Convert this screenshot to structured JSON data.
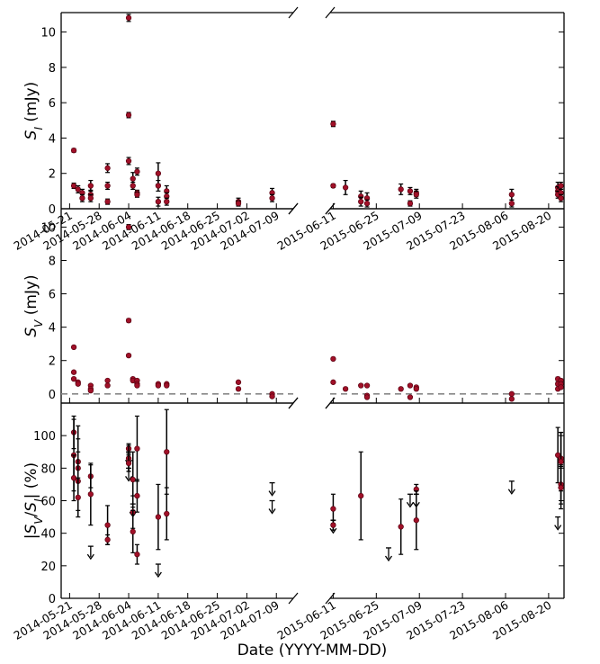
{
  "figure": {
    "xlabel": "Date (YYYY-MM-DD)",
    "marker_color": "#a01028",
    "marker_edge_color": "#5a0010",
    "errorbar_color": "#000000",
    "zero_line_color": "#888888"
  },
  "chart_data": [
    {
      "id": "SI",
      "type": "scatter",
      "ylabel_main": "S",
      "ylabel_sub": "I",
      "ylabel_unit": " (mJy)",
      "ylim": [
        0,
        11.1
      ],
      "yticks": [
        0,
        2,
        4,
        6,
        8,
        10
      ],
      "left_xlim": [
        "2014-05-19",
        "2014-07-13"
      ],
      "left_xticks": [
        "2014-05-21",
        "2014-05-28",
        "2014-06-04",
        "2014-06-11",
        "2014-06-18",
        "2014-06-25",
        "2014-07-02",
        "2014-07-09"
      ],
      "right_xlim": [
        "2015-06-10",
        "2015-08-25"
      ],
      "right_xticks": [
        "2015-06-11",
        "2015-06-25",
        "2015-07-09",
        "2015-07-23",
        "2015-08-06",
        "2015-08-20"
      ],
      "points": [
        [
          "2014-05-22",
          3.3,
          0.1
        ],
        [
          "2014-05-22",
          1.3,
          0.15
        ],
        [
          "2014-05-23",
          1.1,
          0.2
        ],
        [
          "2014-05-24",
          0.9,
          0.2
        ],
        [
          "2014-05-24",
          0.6,
          0.2
        ],
        [
          "2014-05-26",
          1.3,
          0.3
        ],
        [
          "2014-05-26",
          0.8,
          0.25
        ],
        [
          "2014-05-26",
          0.6,
          0.2
        ],
        [
          "2014-05-30",
          2.3,
          0.25
        ],
        [
          "2014-05-30",
          1.3,
          0.2
        ],
        [
          "2014-05-30",
          0.4,
          0.15
        ],
        [
          "2014-06-04",
          10.8,
          0.2
        ],
        [
          "2014-06-04",
          5.3,
          0.15
        ],
        [
          "2014-06-04",
          2.7,
          0.2
        ],
        [
          "2014-06-05",
          1.7,
          0.35
        ],
        [
          "2014-06-05",
          1.3,
          0.2
        ],
        [
          "2014-06-06",
          2.1,
          0.2
        ],
        [
          "2014-06-06",
          0.9,
          0.15
        ],
        [
          "2014-06-06",
          0.8,
          0.15
        ],
        [
          "2014-06-11",
          2.0,
          0.6
        ],
        [
          "2014-06-11",
          1.3,
          0.3
        ],
        [
          "2014-06-11",
          0.4,
          0.25
        ],
        [
          "2014-06-13",
          1.0,
          0.3
        ],
        [
          "2014-06-13",
          0.7,
          0.2
        ],
        [
          "2014-06-13",
          0.4,
          0.2
        ],
        [
          "2014-06-30",
          0.4,
          0.2
        ],
        [
          "2014-06-30",
          0.3,
          0.15
        ],
        [
          "2014-07-08",
          0.9,
          0.25
        ],
        [
          "2014-07-08",
          0.6,
          0.2
        ],
        [
          "2015-06-11",
          4.8,
          0.15
        ],
        [
          "2015-06-11",
          1.3,
          0.1
        ],
        [
          "2015-06-15",
          1.2,
          0.4
        ],
        [
          "2015-06-20",
          0.7,
          0.3
        ],
        [
          "2015-06-20",
          0.4,
          0.25
        ],
        [
          "2015-06-22",
          0.6,
          0.3
        ],
        [
          "2015-06-22",
          0.3,
          0.2
        ],
        [
          "2015-07-03",
          1.1,
          0.3
        ],
        [
          "2015-07-06",
          1.0,
          0.2
        ],
        [
          "2015-07-06",
          0.3,
          0.15
        ],
        [
          "2015-07-08",
          0.9,
          0.2
        ],
        [
          "2015-07-08",
          0.8,
          0.2
        ],
        [
          "2015-08-08",
          0.8,
          0.3
        ],
        [
          "2015-08-08",
          0.3,
          0.2
        ],
        [
          "2015-08-23",
          1.2,
          0.3
        ],
        [
          "2015-08-23",
          1.0,
          0.25
        ],
        [
          "2015-08-23",
          0.8,
          0.2
        ],
        [
          "2015-08-24",
          1.3,
          0.2
        ],
        [
          "2015-08-24",
          0.9,
          0.2
        ],
        [
          "2015-08-24",
          0.6,
          0.2
        ]
      ]
    },
    {
      "id": "SV",
      "type": "scatter",
      "ylabel_main": "S",
      "ylabel_sub": "V",
      "ylabel_unit": " (mJy)",
      "ylim": [
        -0.55,
        11.1
      ],
      "yticks": [
        0,
        2,
        4,
        6,
        8,
        10
      ],
      "zero_line": true,
      "left_xlim": [
        "2014-05-19",
        "2014-07-13"
      ],
      "right_xlim": [
        "2015-06-10",
        "2015-08-25"
      ],
      "points": [
        [
          "2014-05-22",
          2.8,
          0.05
        ],
        [
          "2014-05-22",
          1.3,
          0.05
        ],
        [
          "2014-05-22",
          0.9,
          0.05
        ],
        [
          "2014-05-23",
          0.7,
          0.05
        ],
        [
          "2014-05-23",
          0.6,
          0.05
        ],
        [
          "2014-05-26",
          0.5,
          0.05
        ],
        [
          "2014-05-26",
          0.3,
          0.05
        ],
        [
          "2014-05-26",
          0.2,
          0.05
        ],
        [
          "2014-05-30",
          0.8,
          0.05
        ],
        [
          "2014-05-30",
          0.5,
          0.05
        ],
        [
          "2014-06-04",
          10.0,
          0.15
        ],
        [
          "2014-06-04",
          4.4,
          0.1
        ],
        [
          "2014-06-04",
          2.3,
          0.05
        ],
        [
          "2014-06-05",
          0.9,
          0.05
        ],
        [
          "2014-06-05",
          0.8,
          0.05
        ],
        [
          "2014-06-06",
          0.8,
          0.05
        ],
        [
          "2014-06-06",
          0.6,
          0.05
        ],
        [
          "2014-06-06",
          0.5,
          0.05
        ],
        [
          "2014-06-11",
          0.6,
          0.05
        ],
        [
          "2014-06-11",
          0.5,
          0.05
        ],
        [
          "2014-06-13",
          0.6,
          0.05
        ],
        [
          "2014-06-13",
          0.5,
          0.05
        ],
        [
          "2014-06-30",
          0.7,
          0.05
        ],
        [
          "2014-06-30",
          0.3,
          0.05
        ],
        [
          "2014-07-08",
          0.0,
          0.05
        ],
        [
          "2014-07-08",
          -0.15,
          0.05
        ],
        [
          "2015-06-11",
          2.1,
          0.05
        ],
        [
          "2015-06-11",
          0.7,
          0.05
        ],
        [
          "2015-06-15",
          0.3,
          0.05
        ],
        [
          "2015-06-20",
          0.5,
          0.05
        ],
        [
          "2015-06-22",
          0.5,
          0.05
        ],
        [
          "2015-06-22",
          -0.1,
          0.05
        ],
        [
          "2015-06-22",
          -0.2,
          0.05
        ],
        [
          "2015-07-03",
          0.3,
          0.05
        ],
        [
          "2015-07-06",
          0.5,
          0.05
        ],
        [
          "2015-07-06",
          -0.2,
          0.05
        ],
        [
          "2015-07-08",
          0.4,
          0.05
        ],
        [
          "2015-07-08",
          0.3,
          0.05
        ],
        [
          "2015-08-08",
          0.0,
          0.05
        ],
        [
          "2015-08-08",
          -0.3,
          0.05
        ],
        [
          "2015-08-23",
          0.9,
          0.1
        ],
        [
          "2015-08-23",
          0.6,
          0.1
        ],
        [
          "2015-08-23",
          0.3,
          0.05
        ],
        [
          "2015-08-24",
          0.8,
          0.1
        ],
        [
          "2015-08-24",
          0.6,
          0.1
        ],
        [
          "2015-08-24",
          0.4,
          0.05
        ]
      ]
    },
    {
      "id": "ratio",
      "type": "scatter",
      "ylabel_pre": "|S",
      "ylabel_sub1": "V",
      "ylabel_mid": "/S",
      "ylabel_sub2": "I",
      "ylabel_post": "| (%)",
      "ylim": [
        0,
        120
      ],
      "yticks": [
        0,
        20,
        40,
        60,
        80,
        100
      ],
      "left_xlim": [
        "2014-05-19",
        "2014-07-13"
      ],
      "right_xlim": [
        "2015-06-10",
        "2015-08-25"
      ],
      "left_xticks": [
        "2014-05-21",
        "2014-05-28",
        "2014-06-04",
        "2014-06-11",
        "2014-06-18",
        "2014-06-25",
        "2014-07-02",
        "2014-07-09"
      ],
      "right_xticks": [
        "2015-06-11",
        "2015-06-25",
        "2015-07-09",
        "2015-07-23",
        "2015-08-06",
        "2015-08-20"
      ],
      "points": [
        [
          "2014-05-22",
          102,
          10
        ],
        [
          "2014-05-22",
          88,
          22
        ],
        [
          "2014-05-22",
          74,
          14
        ],
        [
          "2014-05-23",
          84,
          22
        ],
        [
          "2014-05-23",
          80,
          18
        ],
        [
          "2014-05-23",
          72,
          18
        ],
        [
          "2014-05-23",
          62,
          12
        ],
        [
          "2014-05-26",
          75,
          7
        ],
        [
          "2014-05-26",
          64,
          19
        ],
        [
          "2014-05-30",
          45,
          12
        ],
        [
          "2014-05-30",
          36,
          3
        ],
        [
          "2014-06-04",
          92,
          3
        ],
        [
          "2014-06-04",
          86,
          8
        ],
        [
          "2014-06-04",
          83,
          5
        ],
        [
          "2014-06-05",
          73,
          17
        ],
        [
          "2014-06-05",
          53,
          10
        ],
        [
          "2014-06-05",
          41,
          13
        ],
        [
          "2014-06-06",
          92,
          20
        ],
        [
          "2014-06-06",
          63,
          10
        ],
        [
          "2014-06-06",
          27,
          6
        ],
        [
          "2014-06-11",
          50,
          20
        ],
        [
          "2014-06-13",
          90,
          26
        ],
        [
          "2014-06-13",
          52,
          16
        ],
        [
          "2015-06-11",
          55,
          9
        ],
        [
          "2015-06-11",
          45,
          3
        ],
        [
          "2015-06-20",
          63,
          27
        ],
        [
          "2015-07-03",
          44,
          17
        ],
        [
          "2015-07-08",
          67,
          3
        ],
        [
          "2015-07-08",
          48,
          18
        ],
        [
          "2015-08-23",
          88,
          17
        ],
        [
          "2015-08-24",
          86,
          16
        ],
        [
          "2015-08-24",
          84,
          18
        ],
        [
          "2015-08-24",
          70,
          12
        ],
        [
          "2015-08-24",
          68,
          13
        ]
      ],
      "upper_limits": [
        [
          "2014-05-26",
          32
        ],
        [
          "2014-06-04",
          90
        ],
        [
          "2014-06-04",
          80
        ],
        [
          "2014-06-05",
          58
        ],
        [
          "2014-06-11",
          21
        ],
        [
          "2014-07-08",
          71
        ],
        [
          "2014-07-08",
          60
        ],
        [
          "2015-06-11",
          48
        ],
        [
          "2015-06-29",
          31
        ],
        [
          "2015-07-06",
          64
        ],
        [
          "2015-07-08",
          64
        ],
        [
          "2015-08-08",
          72
        ],
        [
          "2015-08-23",
          50
        ]
      ]
    }
  ]
}
